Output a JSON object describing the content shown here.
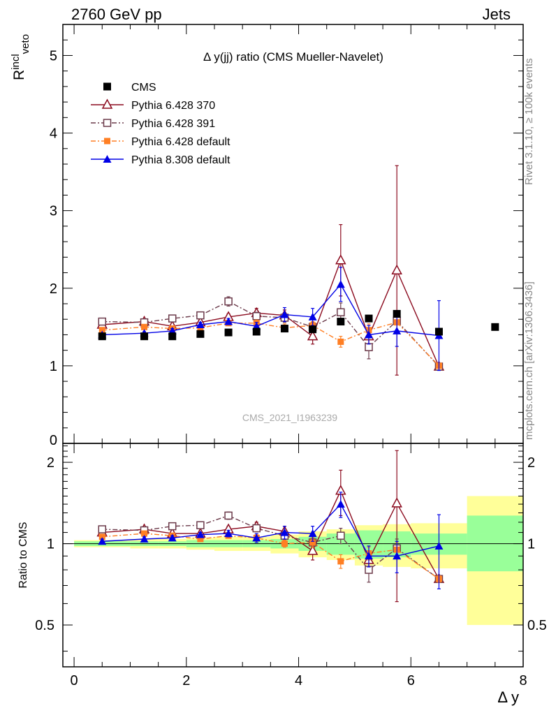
{
  "header": {
    "left": "2760 GeV pp",
    "right": "Jets"
  },
  "side_labels": {
    "rivet": "Rivet 3.1.10, ≥ 100k events",
    "source": "mcplots.cern.ch [arXiv:1306.3436]"
  },
  "watermark": "CMS_2021_I1963239",
  "colors": {
    "cms": "#000000",
    "p370": "#8b0a1e",
    "p391": "#6b3a4a",
    "p6def": "#ff7f24",
    "p8def": "#0000e6",
    "band_inner": "#99ff99",
    "band_outer": "#ffff99"
  },
  "chart_data": [
    {
      "type": "scatter",
      "title": "Δ y(jj) ratio (CMS Mueller-Navelet)",
      "ylabel": "R^incl_veto",
      "xlim": [
        -0.2,
        8.0
      ],
      "ylim": [
        0,
        5.4
      ],
      "yticks": [
        0,
        1,
        2,
        3,
        4,
        5
      ],
      "legend_position": "top-left",
      "series": [
        {
          "name": "CMS",
          "x": [
            0.5,
            1.25,
            1.75,
            2.25,
            2.75,
            3.25,
            3.75,
            4.25,
            4.75,
            5.25,
            5.75,
            6.5,
            7.5
          ],
          "y": [
            1.38,
            1.38,
            1.38,
            1.41,
            1.43,
            1.44,
            1.48,
            1.47,
            1.57,
            1.61,
            1.67,
            1.44,
            1.5
          ]
        },
        {
          "name": "Pythia 6.428 370",
          "x": [
            0.5,
            1.25,
            1.75,
            2.25,
            2.75,
            3.25,
            3.75,
            4.25,
            4.75,
            5.25,
            5.75,
            6.5
          ],
          "y": [
            1.53,
            1.57,
            1.51,
            1.56,
            1.63,
            1.68,
            1.65,
            1.38,
            2.36,
            1.38,
            2.23,
            0.99
          ],
          "err": [
            0.02,
            0.02,
            0.03,
            0.03,
            0.04,
            0.06,
            0.07,
            0.1,
            0.46,
            0.1,
            1.35,
            0.02
          ]
        },
        {
          "name": "Pythia 6.428 391",
          "x": [
            0.5,
            1.25,
            1.75,
            2.25,
            2.75,
            3.25,
            3.75,
            4.25,
            4.75,
            5.25,
            5.75,
            6.5
          ],
          "y": [
            1.57,
            1.56,
            1.61,
            1.65,
            1.83,
            1.64,
            1.62,
            1.5,
            1.69,
            1.24,
            1.58,
            0.99
          ],
          "err": [
            0.02,
            0.02,
            0.03,
            0.03,
            0.06,
            0.05,
            0.06,
            0.06,
            0.12,
            0.15,
            0.12,
            0.02
          ]
        },
        {
          "name": "Pythia 6.428 default",
          "x": [
            0.5,
            1.25,
            1.75,
            2.25,
            2.75,
            3.25,
            3.75,
            4.25,
            4.75,
            5.25,
            5.75,
            6.5
          ],
          "y": [
            1.46,
            1.5,
            1.48,
            1.49,
            1.55,
            1.55,
            1.49,
            1.52,
            1.31,
            1.46,
            1.56,
            1.0
          ],
          "err": [
            0.02,
            0.02,
            0.02,
            0.03,
            0.03,
            0.04,
            0.05,
            0.05,
            0.07,
            0.08,
            0.1,
            0.02
          ]
        },
        {
          "name": "Pythia 8.308 default",
          "x": [
            0.5,
            1.25,
            1.75,
            2.25,
            2.75,
            3.25,
            3.75,
            4.25,
            4.75,
            5.25,
            5.75,
            6.5
          ],
          "y": [
            1.4,
            1.42,
            1.45,
            1.53,
            1.57,
            1.51,
            1.66,
            1.63,
            2.05,
            1.4,
            1.45,
            1.39
          ],
          "err": [
            0.02,
            0.02,
            0.03,
            0.03,
            0.04,
            0.05,
            0.09,
            0.11,
            0.22,
            0.12,
            0.2,
            0.45
          ]
        }
      ]
    },
    {
      "type": "scatter",
      "ylabel": "Ratio to CMS",
      "xlabel": "Δ y",
      "xlim": [
        -0.2,
        8.0
      ],
      "ylim": [
        0.35,
        2.35
      ],
      "xticks": [
        0,
        2,
        4,
        6,
        8
      ],
      "yticks": [
        0.5,
        1,
        2
      ],
      "band_edges": [
        0,
        1,
        1.5,
        2,
        2.5,
        3,
        3.5,
        4,
        4.5,
        5,
        5.5,
        6,
        7,
        8
      ],
      "band_inner": [
        [
          0.98,
          1.02
        ],
        [
          0.98,
          1.02
        ],
        [
          0.98,
          1.02
        ],
        [
          0.97,
          1.03
        ],
        [
          0.97,
          1.03
        ],
        [
          0.97,
          1.03
        ],
        [
          0.96,
          1.04
        ],
        [
          0.94,
          1.06
        ],
        [
          0.91,
          1.09
        ],
        [
          0.88,
          1.12
        ],
        [
          0.89,
          1.11
        ],
        [
          0.91,
          1.09
        ],
        [
          0.79,
          1.27
        ]
      ],
      "band_outer": [
        [
          0.97,
          1.03
        ],
        [
          0.96,
          1.04
        ],
        [
          0.96,
          1.04
        ],
        [
          0.95,
          1.05
        ],
        [
          0.94,
          1.06
        ],
        [
          0.94,
          1.06
        ],
        [
          0.92,
          1.08
        ],
        [
          0.89,
          1.11
        ],
        [
          0.87,
          1.13
        ],
        [
          0.83,
          1.17
        ],
        [
          0.82,
          1.18
        ],
        [
          0.81,
          1.19
        ],
        [
          0.5,
          1.5
        ]
      ],
      "series": [
        {
          "name": "Pythia 6.428 370",
          "x": [
            0.5,
            1.25,
            1.75,
            2.25,
            2.75,
            3.25,
            3.75,
            4.25,
            4.75,
            5.25,
            5.75,
            6.5
          ],
          "y": [
            1.1,
            1.13,
            1.09,
            1.09,
            1.13,
            1.16,
            1.11,
            0.94,
            1.57,
            0.87,
            1.41,
            0.74
          ],
          "err": [
            0.02,
            0.02,
            0.02,
            0.02,
            0.03,
            0.04,
            0.05,
            0.07,
            0.3,
            0.07,
            0.8,
            0.02
          ]
        },
        {
          "name": "Pythia 6.428 391",
          "x": [
            0.5,
            1.25,
            1.75,
            2.25,
            2.75,
            3.25,
            3.75,
            4.25,
            4.75,
            5.25,
            5.75,
            6.5
          ],
          "y": [
            1.13,
            1.12,
            1.16,
            1.17,
            1.27,
            1.14,
            1.07,
            1.01,
            1.07,
            0.8,
            0.96,
            0.74
          ],
          "err": [
            0.02,
            0.02,
            0.02,
            0.02,
            0.04,
            0.03,
            0.04,
            0.04,
            0.07,
            0.08,
            0.08,
            0.02
          ]
        },
        {
          "name": "Pythia 6.428 default",
          "x": [
            0.5,
            1.25,
            1.75,
            2.25,
            2.75,
            3.25,
            3.75,
            4.25,
            4.75,
            5.25,
            5.75,
            6.5
          ],
          "y": [
            1.06,
            1.09,
            1.07,
            1.04,
            1.07,
            1.05,
            1.0,
            1.01,
            0.86,
            0.92,
            0.95,
            0.74
          ],
          "err": [
            0.02,
            0.02,
            0.02,
            0.02,
            0.02,
            0.03,
            0.03,
            0.04,
            0.05,
            0.05,
            0.06,
            0.02
          ]
        },
        {
          "name": "Pythia 8.308 default",
          "x": [
            0.5,
            1.25,
            1.75,
            2.25,
            2.75,
            3.25,
            3.75,
            4.25,
            4.75,
            5.25,
            5.75,
            6.5
          ],
          "y": [
            1.02,
            1.04,
            1.05,
            1.08,
            1.09,
            1.05,
            1.1,
            1.09,
            1.4,
            0.9,
            0.9,
            0.98
          ],
          "err": [
            0.02,
            0.02,
            0.02,
            0.02,
            0.03,
            0.04,
            0.06,
            0.07,
            0.15,
            0.08,
            0.12,
            0.3
          ]
        }
      ]
    }
  ]
}
